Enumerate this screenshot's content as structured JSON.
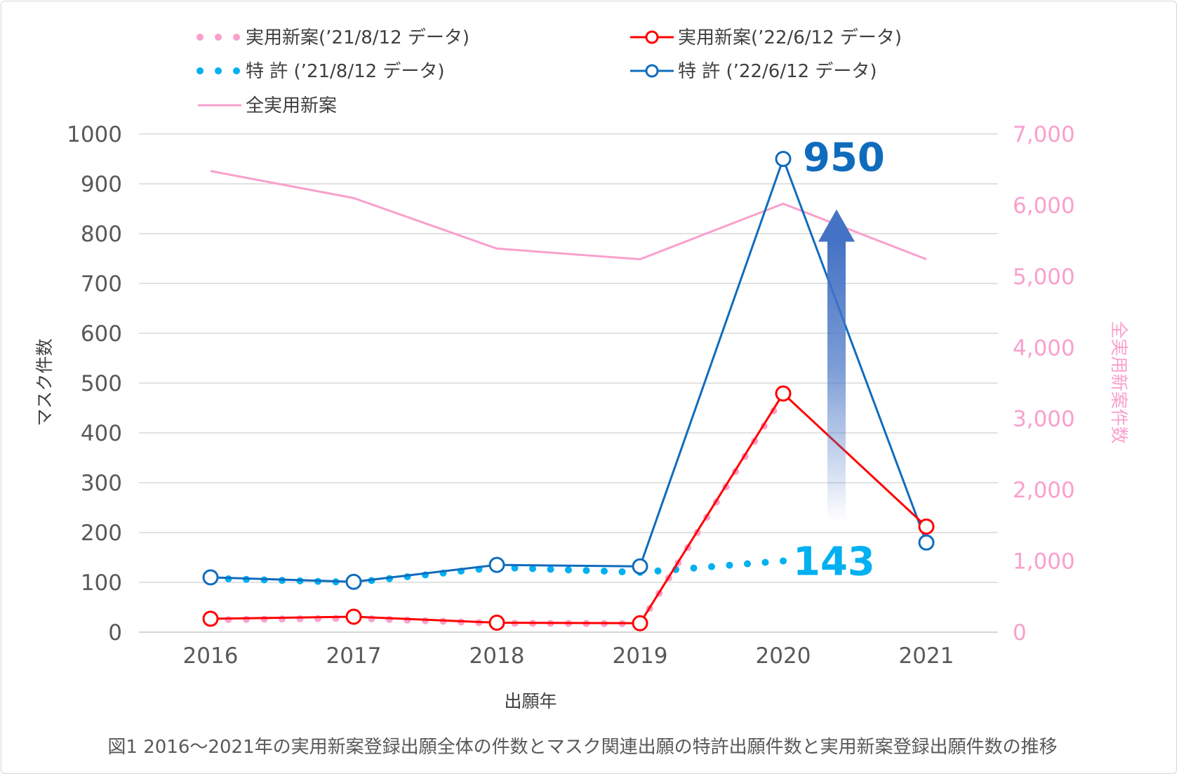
{
  "caption": "図1  2016～2021年の実用新案登録出願全体の件数とマスク関連出願の特許出願件数と実用新案登録出願件数の推移",
  "chart_data": {
    "type": "line",
    "title": "",
    "xlabel": "出願年",
    "ylabel": "マスク件数",
    "ylabel_right": "全実用新案件数",
    "categories": [
      "2016",
      "2017",
      "2018",
      "2019",
      "2020",
      "2021"
    ],
    "ylim": [
      0,
      1000
    ],
    "yticks": [
      "0",
      "100",
      "200",
      "300",
      "400",
      "500",
      "600",
      "700",
      "800",
      "900",
      "1000"
    ],
    "ylim_right": [
      0,
      7000
    ],
    "yticks_right": [
      "0",
      "1,000",
      "2,000",
      "3,000",
      "4,000",
      "5,000",
      "6,000",
      "7,000"
    ],
    "grid": true,
    "legend_position": "top",
    "series": [
      {
        "name": "実用新案(’21/8/12 データ)",
        "color": "#f9a0cd",
        "style": "dotted",
        "axis": "left",
        "values": [
          25,
          28,
          18,
          17,
          475,
          null
        ]
      },
      {
        "name": "実用新案(’22/6/12 データ)",
        "color": "#ff0000",
        "style": "solid-marker",
        "axis": "left",
        "values": [
          27,
          31,
          19,
          18,
          479,
          212
        ]
      },
      {
        "name": "特  許  (’21/8/12 データ)",
        "color": "#00b0f0",
        "style": "dotted",
        "axis": "left",
        "values": [
          108,
          100,
          130,
          120,
          143,
          null
        ]
      },
      {
        "name": "特  許  (’22/6/12 データ)",
        "color": "#0f6cbd",
        "style": "solid-marker",
        "axis": "left",
        "values": [
          110,
          101,
          135,
          132,
          950,
          180
        ]
      },
      {
        "name": "全実用新案",
        "color": "#f9a0cd",
        "style": "solid",
        "axis": "right",
        "values": [
          6480,
          6100,
          5390,
          5240,
          6020,
          5240
        ]
      }
    ],
    "annotations": [
      {
        "text": "950",
        "color": "#0f6cbd"
      },
      {
        "text": "143",
        "color": "#00b0f0"
      }
    ]
  }
}
